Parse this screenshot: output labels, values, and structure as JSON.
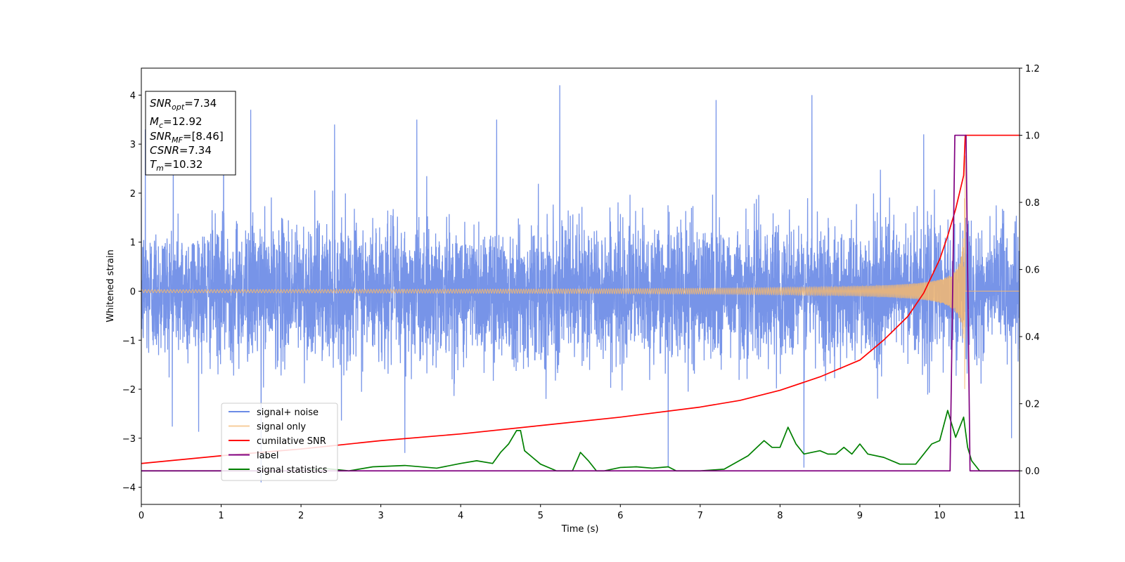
{
  "chart_data": {
    "type": "line",
    "xlabel": "Time (s)",
    "ylabel": "Whitened strain",
    "xlim": [
      0,
      11
    ],
    "ylim": [
      -4.35,
      4.55
    ],
    "y2lim": [
      -0.1,
      1.2
    ],
    "x_ticks": [
      "0",
      "1",
      "2",
      "3",
      "4",
      "5",
      "6",
      "7",
      "8",
      "9",
      "10",
      "11"
    ],
    "y_ticks": [
      "−4",
      "−3",
      "−2",
      "−1",
      "0",
      "1",
      "2",
      "3",
      "4"
    ],
    "y2_ticks": [
      "0.0",
      "0.2",
      "0.4",
      "0.6",
      "0.8",
      "1.0",
      "1.2"
    ],
    "grid": false,
    "legend_position": "lower-left",
    "colors": {
      "signal_noise": "#6b8be6",
      "signal_only": "#f4b870",
      "cumulative_snr": "#ff0000",
      "label": "#800080",
      "signal_statistics": "#008000"
    },
    "series": [
      {
        "name": "signal+ noise",
        "axis": "left",
        "style": "noise",
        "noise_std": 0.95,
        "x_range": [
          0,
          11
        ],
        "peaks": [
          [
            0.05,
            3.3
          ],
          [
            0.4,
            3.5
          ],
          [
            1.03,
            3.6
          ],
          [
            1.37,
            3.7
          ],
          [
            2.42,
            3.4
          ],
          [
            3.45,
            3.5
          ],
          [
            4.45,
            3.5
          ],
          [
            5.24,
            4.2
          ],
          [
            7.2,
            3.9
          ],
          [
            8.4,
            4.0
          ],
          [
            9.8,
            3.2
          ],
          [
            1.5,
            -3.9
          ],
          [
            3.3,
            -3.3
          ],
          [
            6.6,
            -3.6
          ],
          [
            8.3,
            -3.6
          ],
          [
            10.9,
            -3.0
          ]
        ]
      },
      {
        "name": "signal only",
        "axis": "left",
        "style": "chirp",
        "merger_time": 10.32,
        "final_amplitude": 2.8,
        "x_range": [
          0,
          10.32
        ]
      },
      {
        "name": "cumilative SNR",
        "axis": "right",
        "x": [
          0,
          1,
          2,
          3,
          4,
          5,
          6,
          7,
          7.5,
          8,
          8.5,
          9,
          9.3,
          9.6,
          9.8,
          10.0,
          10.1,
          10.2,
          10.3,
          10.32,
          11
        ],
        "y": [
          0.022,
          0.045,
          0.065,
          0.09,
          0.11,
          0.135,
          0.16,
          0.19,
          0.21,
          0.24,
          0.28,
          0.33,
          0.39,
          0.46,
          0.53,
          0.63,
          0.7,
          0.78,
          0.88,
          1.0,
          1.0
        ]
      },
      {
        "name": "label",
        "axis": "right",
        "x": [
          0,
          10.13,
          10.19,
          10.33,
          10.38,
          11
        ],
        "y": [
          0,
          0,
          1.0,
          1.0,
          0,
          0
        ]
      },
      {
        "name": "signal statistics",
        "axis": "right",
        "x": [
          0,
          1,
          2,
          2.3,
          2.6,
          2.9,
          3.3,
          3.7,
          4.0,
          4.2,
          4.4,
          4.5,
          4.6,
          4.7,
          4.75,
          4.8,
          4.9,
          5.0,
          5.2,
          5.4,
          5.5,
          5.6,
          5.7,
          5.8,
          6.0,
          6.2,
          6.4,
          6.6,
          6.7,
          7.0,
          7.3,
          7.6,
          7.8,
          7.9,
          8.0,
          8.1,
          8.2,
          8.3,
          8.5,
          8.6,
          8.7,
          8.8,
          8.9,
          9.0,
          9.1,
          9.3,
          9.5,
          9.7,
          9.9,
          10.0,
          10.1,
          10.2,
          10.3,
          10.35,
          10.4,
          10.5,
          11
        ],
        "y": [
          0,
          0,
          0,
          0.007,
          0,
          0.012,
          0.016,
          0.008,
          0.022,
          0.03,
          0.022,
          0.055,
          0.08,
          0.12,
          0.12,
          0.06,
          0.04,
          0.02,
          0.0,
          0.0,
          0.055,
          0.03,
          0.0,
          0.0,
          0.01,
          0.012,
          0.008,
          0.012,
          0.0,
          0.0,
          0.005,
          0.045,
          0.09,
          0.07,
          0.07,
          0.13,
          0.08,
          0.05,
          0.06,
          0.05,
          0.05,
          0.07,
          0.05,
          0.08,
          0.05,
          0.04,
          0.02,
          0.02,
          0.08,
          0.09,
          0.18,
          0.1,
          0.16,
          0.07,
          0.03,
          0.0,
          0.0
        ]
      }
    ],
    "info_box": [
      {
        "main": "SNR",
        "sub": "opt",
        "value": "=7.34"
      },
      {
        "main": "M",
        "sub": "c",
        "value": "=12.92"
      },
      {
        "main": "SNR",
        "sub": "MF",
        "value": "=[8.46]"
      },
      {
        "main": "CSNR",
        "sub": "",
        "value": "=7.34"
      },
      {
        "main": "T",
        "sub": "m",
        "value": "=10.32"
      }
    ]
  }
}
